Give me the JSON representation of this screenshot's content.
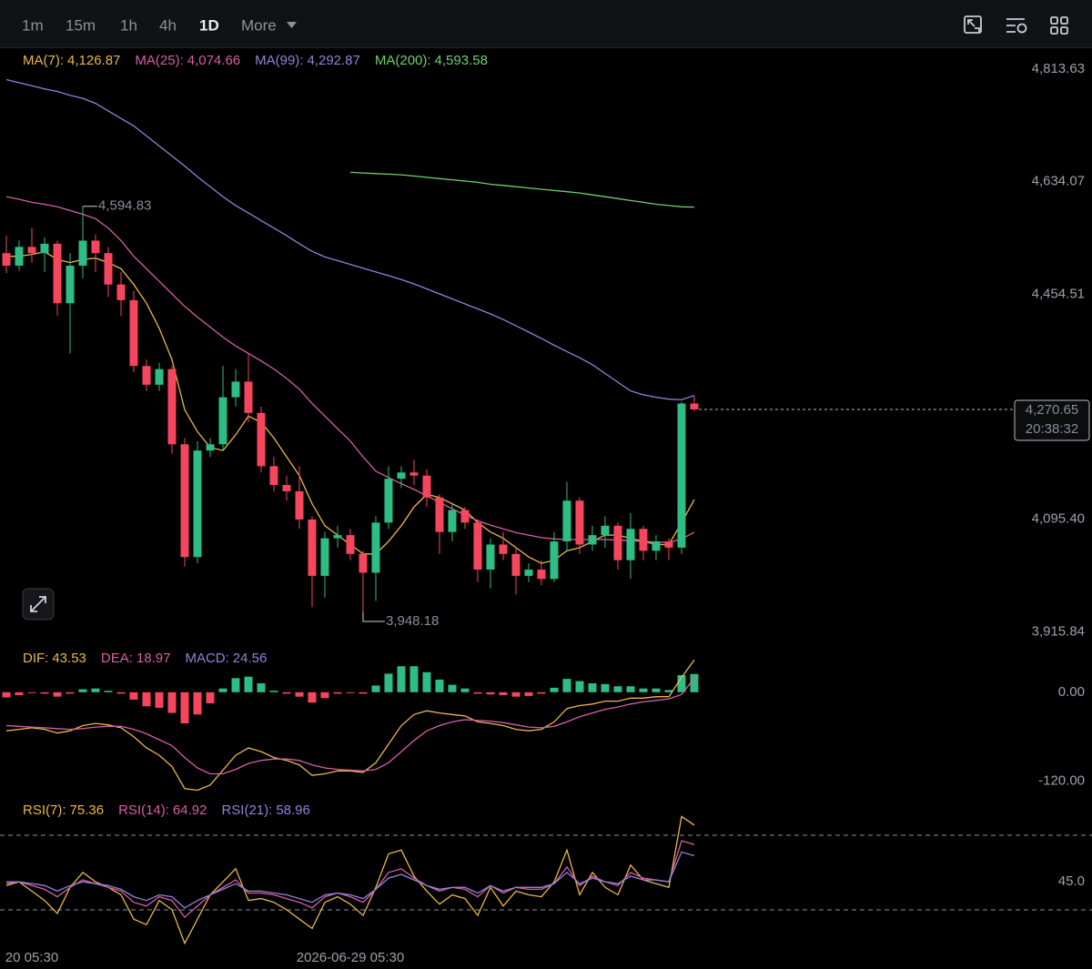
{
  "toolbar": {
    "intervals": [
      "1m",
      "15m",
      "1h",
      "4h",
      "1D",
      "More"
    ]
  },
  "chart_data": [
    {
      "type": "candlestick",
      "xlim": [
        -0.5,
        78.79
      ],
      "ylim": [
        3893.06,
        4848.48
      ],
      "yticks": [
        {
          "value": 4813.63,
          "label": "4,813.63"
        },
        {
          "value": 4634.07,
          "label": "4,634.07"
        },
        {
          "value": 4454.51,
          "label": "4,454.51"
        },
        {
          "value": 4095.4,
          "label": "4,095.40"
        },
        {
          "value": 3915.84,
          "label": "3,915.84"
        }
      ],
      "up_color": "#2ebd85",
      "down_color": "#f6465d",
      "open": [
        4520,
        4500,
        4530,
        4520,
        4535,
        4440,
        4500,
        4540,
        4520,
        4470,
        4445,
        4340,
        4310,
        4335,
        4215,
        4035,
        4205,
        4215,
        4290,
        4315,
        4265,
        4180,
        4150,
        4140,
        4095,
        4005,
        4065,
        4070,
        4040,
        4010,
        4090,
        4160,
        4170,
        4165,
        4130,
        4075,
        4110,
        4090,
        4015,
        4055,
        4040,
        4005,
        4015,
        4000,
        4060,
        4125,
        4055,
        4070,
        4085,
        4030,
        4080,
        4045,
        4060,
        4050,
        4280
      ],
      "high": [
        4548,
        4540,
        4560,
        4545,
        4540,
        4520,
        4594.83,
        4550,
        4530,
        4490,
        4460,
        4350,
        4345,
        4340,
        4225,
        4220,
        4225,
        4340,
        4335,
        4360,
        4275,
        4195,
        4165,
        4180,
        4100,
        4075,
        4085,
        4080,
        4045,
        4100,
        4180,
        4180,
        4190,
        4175,
        4135,
        4120,
        4115,
        4095,
        4065,
        4075,
        4050,
        4025,
        4030,
        4075,
        4155,
        4130,
        4085,
        4100,
        4090,
        4105,
        4085,
        4070,
        4065,
        4283,
        4292
      ],
      "low": [
        4488,
        4492,
        4505,
        4490,
        4420,
        4360,
        4480,
        4490,
        4450,
        4420,
        4330,
        4300,
        4300,
        4200,
        4020,
        4025,
        4195,
        4205,
        4275,
        4250,
        4170,
        4140,
        4125,
        4080,
        3955,
        3970,
        4050,
        4030,
        3948.18,
        3965,
        4080,
        4145,
        4150,
        4115,
        4040,
        4060,
        4080,
        3995,
        3985,
        4030,
        3975,
        3995,
        3990,
        3995,
        4045,
        4040,
        4045,
        4050,
        4015,
        4000,
        4030,
        4030,
        4030,
        4040,
        4268
      ],
      "close": [
        4500,
        4530,
        4520,
        4535,
        4440,
        4500,
        4540,
        4520,
        4470,
        4445,
        4340,
        4310,
        4335,
        4215,
        4035,
        4205,
        4215,
        4290,
        4315,
        4265,
        4180,
        4150,
        4140,
        4095,
        4005,
        4065,
        4070,
        4040,
        4010,
        4090,
        4160,
        4170,
        4165,
        4130,
        4075,
        4110,
        4090,
        4015,
        4055,
        4040,
        4005,
        4015,
        4000,
        4060,
        4125,
        4055,
        4070,
        4085,
        4030,
        4080,
        4045,
        4060,
        4050,
        4280,
        4270.65
      ],
      "max_label": "4,594.83",
      "min_label": "3,948.18",
      "last_price_label": "4,270.65",
      "countdown": "20:38:32",
      "series": [
        {
          "name": "MA(7):",
          "value_label": "4,126.87",
          "color": "#e8b84a",
          "values": [
            4515,
            4515,
            4518,
            4522,
            4510,
            4505,
            4510,
            4512,
            4505,
            4495,
            4470,
            4440,
            4400,
            4350,
            4270,
            4235,
            4210,
            4205,
            4230,
            4260,
            4250,
            4225,
            4195,
            4165,
            4120,
            4085,
            4070,
            4055,
            4040,
            4040,
            4060,
            4085,
            4115,
            4135,
            4130,
            4120,
            4110,
            4090,
            4075,
            4065,
            4050,
            4035,
            4025,
            4030,
            4045,
            4050,
            4060,
            4070,
            4070,
            4065,
            4060,
            4055,
            4055,
            4090,
            4126.87
          ]
        },
        {
          "name": "MA(25):",
          "value_label": "4,074.66",
          "color": "#d65fa8",
          "values": [
            4610,
            4606,
            4601,
            4598,
            4594,
            4588,
            4582,
            4575,
            4560,
            4540,
            4515,
            4495,
            4475,
            4455,
            4435,
            4418,
            4402,
            4386,
            4372,
            4360,
            4348,
            4335,
            4320,
            4303,
            4280,
            4260,
            4240,
            4220,
            4195,
            4172,
            4162,
            4152,
            4143,
            4133,
            4122,
            4112,
            4102,
            4093,
            4086,
            4080,
            4074,
            4070,
            4066,
            4064,
            4063,
            4063,
            4063,
            4063,
            4062,
            4061,
            4060,
            4059,
            4058,
            4064,
            4074.66
          ]
        },
        {
          "name": "MA(99):",
          "value_label": "4,292.87",
          "color": "#8e84d8",
          "values": [
            4797,
            4792,
            4787,
            4782,
            4778,
            4772,
            4767,
            4759,
            4747,
            4735,
            4723,
            4707,
            4691,
            4675,
            4659,
            4642,
            4626,
            4610,
            4596,
            4584,
            4572,
            4560,
            4548,
            4535,
            4523,
            4514,
            4508,
            4502,
            4496,
            4490,
            4484,
            4478,
            4471,
            4463,
            4455,
            4447,
            4439,
            4431,
            4423,
            4414,
            4404,
            4394,
            4384,
            4373,
            4363,
            4353,
            4342,
            4328,
            4314,
            4300,
            4294,
            4290,
            4287,
            4286,
            4292.87
          ]
        },
        {
          "name": "MA(200):",
          "value_label": "4,593.58",
          "color": "#6fcf6f",
          "values": [
            null,
            null,
            null,
            null,
            null,
            null,
            null,
            null,
            null,
            null,
            null,
            null,
            null,
            null,
            null,
            null,
            null,
            null,
            null,
            null,
            null,
            null,
            null,
            null,
            null,
            null,
            null,
            4649,
            4648,
            4647,
            4646,
            4645,
            4643,
            4641,
            4639,
            4637,
            4635,
            4633,
            4630,
            4628,
            4626,
            4624,
            4622,
            4620,
            4618,
            4616,
            4613,
            4610,
            4607,
            4604,
            4601,
            4598,
            4596,
            4594,
            4593.58
          ]
        }
      ]
    },
    {
      "type": "macd",
      "xlim": [
        -0.5,
        78.79
      ],
      "ylim": [
        -140,
        50
      ],
      "yticks": [
        {
          "value": 0,
          "label": "0.00"
        },
        {
          "value": -120,
          "label": "-120.00"
        }
      ],
      "histogram": {
        "name": "MACD:",
        "value_label": "24.56",
        "color": "#8e84d8",
        "up_color": "#2ebd85",
        "down_color": "#f6465d",
        "values": [
          -7,
          -4,
          -1,
          -2,
          -6,
          -2,
          4,
          5,
          2,
          -2,
          -10,
          -19,
          -21,
          -28,
          -42,
          -30,
          -15,
          5,
          19,
          21,
          12,
          2,
          -2,
          -6,
          -14,
          -8,
          -2,
          -1,
          -2,
          9,
          25,
          35,
          35,
          27,
          17,
          10,
          5,
          -2,
          -3,
          -4,
          -6,
          -5,
          -2,
          6,
          18,
          15,
          12,
          11,
          8,
          8,
          5,
          5,
          3,
          23,
          24.56
        ]
      },
      "series": [
        {
          "name": "DIF:",
          "value_label": "43.53",
          "color": "#e8b84a",
          "values": [
            -52,
            -50,
            -48,
            -50,
            -55,
            -52,
            -45,
            -42,
            -44,
            -48,
            -60,
            -75,
            -85,
            -100,
            -130,
            -132,
            -125,
            -105,
            -85,
            -75,
            -80,
            -88,
            -92,
            -98,
            -112,
            -110,
            -106,
            -106,
            -108,
            -95,
            -70,
            -45,
            -30,
            -25,
            -28,
            -30,
            -32,
            -40,
            -42,
            -45,
            -50,
            -52,
            -50,
            -40,
            -22,
            -18,
            -16,
            -12,
            -12,
            -8,
            -8,
            -6,
            -6,
            20,
            43.53
          ]
        },
        {
          "name": "DEA:",
          "value_label": "18.97",
          "color": "#d65fa8",
          "values": [
            -45,
            -46,
            -47,
            -48,
            -49,
            -50,
            -49,
            -47,
            -46,
            -46,
            -50,
            -56,
            -64,
            -72,
            -88,
            -102,
            -110,
            -110,
            -104,
            -96,
            -92,
            -90,
            -90,
            -92,
            -98,
            -102,
            -104,
            -105,
            -106,
            -104,
            -95,
            -80,
            -65,
            -52,
            -45,
            -40,
            -37,
            -38,
            -39,
            -41,
            -44,
            -47,
            -48,
            -46,
            -40,
            -33,
            -28,
            -23,
            -20,
            -16,
            -13,
            -11,
            -9,
            -3,
            18.97
          ]
        }
      ]
    },
    {
      "type": "rsi",
      "xlim": [
        -0.5,
        78.79
      ],
      "ylim": [
        8,
        88.5
      ],
      "yticks": [
        {
          "value": 45,
          "label": "45.0"
        }
      ],
      "xticks": [
        {
          "value": 2,
          "label": "20 05:30"
        },
        {
          "value": 27,
          "label": "2026-06-29 05:30"
        }
      ],
      "series": [
        {
          "name": "RSI(7):",
          "value_label": "75.36",
          "color": "#e8b84a",
          "values": [
            43,
            45,
            40,
            35,
            28,
            42,
            50,
            45,
            42,
            38,
            25,
            22,
            35,
            30,
            12,
            25,
            38,
            45,
            52,
            35,
            36,
            34,
            30,
            25,
            20,
            34,
            37,
            33,
            27,
            42,
            60,
            62,
            48,
            40,
            33,
            38,
            36,
            27,
            42,
            32,
            40,
            38,
            37,
            45,
            62,
            38,
            50,
            42,
            38,
            54,
            46,
            44,
            42,
            80,
            75.36
          ]
        },
        {
          "name": "RSI(14):",
          "value_label": "64.92",
          "color": "#d65fa8",
          "values": [
            44,
            45,
            43,
            41,
            37,
            42,
            46,
            44,
            42,
            40,
            34,
            32,
            37,
            35,
            26,
            32,
            38,
            42,
            46,
            39,
            39,
            38,
            36,
            34,
            31,
            37,
            39,
            37,
            34,
            41,
            50,
            52,
            47,
            43,
            40,
            42,
            41,
            37,
            43,
            39,
            42,
            41,
            41,
            44,
            53,
            43,
            48,
            45,
            43,
            50,
            47,
            46,
            45,
            67,
            64.92
          ]
        },
        {
          "name": "RSI(21):",
          "value_label": "58.96",
          "color": "#8e84d8",
          "values": [
            45,
            45,
            44,
            43,
            40,
            43,
            45,
            44,
            43,
            41,
            37,
            35,
            38,
            37,
            31,
            35,
            38,
            41,
            44,
            40,
            40,
            39,
            38,
            36,
            34,
            38,
            39,
            38,
            36,
            41,
            47,
            49,
            46,
            43,
            41,
            42,
            42,
            39,
            43,
            40,
            42,
            42,
            42,
            44,
            50,
            44,
            47,
            45,
            44,
            48,
            46,
            46,
            45,
            61,
            58.96
          ]
        }
      ]
    }
  ]
}
